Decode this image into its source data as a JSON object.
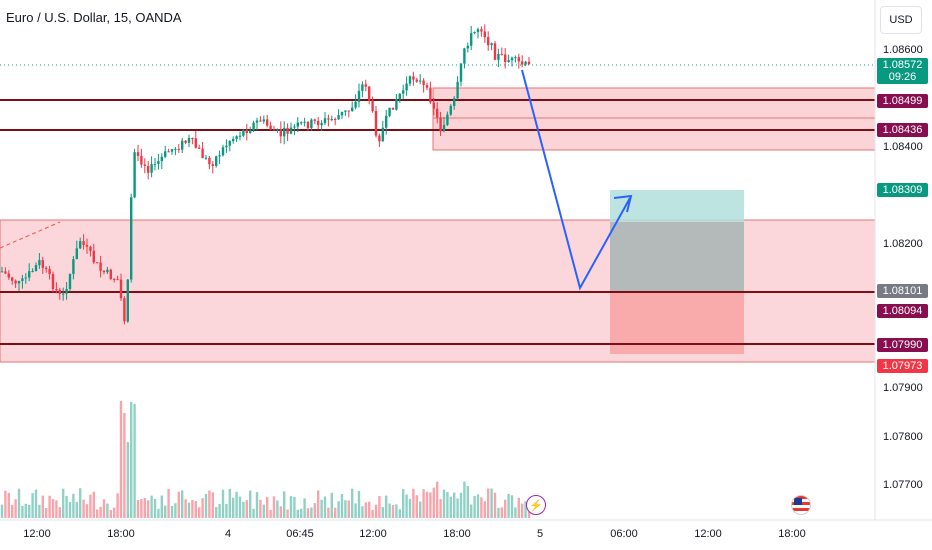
{
  "header": {
    "title": "Euro / U.S. Dollar, 15, OANDA",
    "currency": "USD"
  },
  "price_axis": {
    "ticks": [
      "1.08600",
      "1.08400",
      "1.08200",
      "1.07900",
      "1.07800",
      "1.07700"
    ],
    "labels": {
      "current": {
        "price": "1.08572",
        "countdown": "09:26",
        "color": "#089981"
      },
      "l1": {
        "price": "1.08499",
        "color": "#880e4f"
      },
      "l2": {
        "price": "1.08436",
        "color": "#880e4f"
      },
      "target": {
        "price": "1.08309",
        "color": "#089981"
      },
      "mid": {
        "price": "1.08101",
        "color": "#787b86"
      },
      "l3": {
        "price": "1.08094",
        "color": "#880e4f"
      },
      "l4": {
        "price": "1.07990",
        "color": "#880e4f"
      },
      "stop": {
        "price": "1.07973",
        "color": "#f23645"
      }
    }
  },
  "time_axis": [
    "12:00",
    "18:00",
    "4",
    "06:45",
    "12:00",
    "18:00",
    "5",
    "06:00",
    "12:00",
    "18:00"
  ],
  "colors": {
    "up": "#089981",
    "down": "#f23645",
    "zone_fill": "#f9c5cb",
    "level_line": "#7b0e16",
    "projection": "#2962ff",
    "target_zone": "#b2dfdb",
    "stop_zone": "#f8a5a5"
  },
  "events": {
    "flash": "flash-icon",
    "flag": "us-flag-icon"
  }
}
